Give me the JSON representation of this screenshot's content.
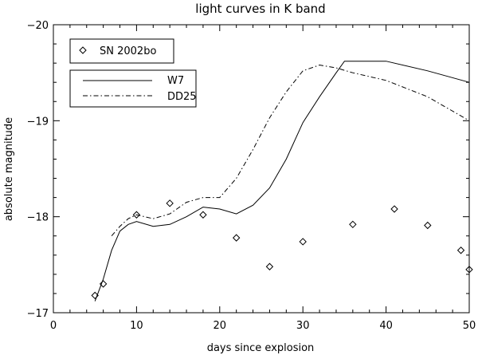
{
  "chart_data": {
    "type": "line",
    "title": "light curves in K band",
    "xlabel": "days since explosion",
    "ylabel": "absolute magnitude",
    "xlim": [
      0,
      50
    ],
    "ylim": [
      -17,
      -20
    ],
    "y_inverted": true,
    "grid": false,
    "legend_placement": "top-left",
    "x_ticks": [
      0,
      10,
      20,
      30,
      40,
      50
    ],
    "y_ticks": [
      -17,
      -18,
      -19,
      -20
    ],
    "x_tick_labels": [
      "0",
      "10",
      "20",
      "30",
      "40",
      "50"
    ],
    "y_tick_labels": [
      "−17",
      "−18",
      "−19",
      "−20"
    ],
    "observations": {
      "name": "SN 2002bo",
      "marker": "diamond",
      "x": [
        5,
        6,
        10,
        14,
        18,
        22,
        26,
        30,
        36,
        41,
        45,
        49,
        50
      ],
      "y": [
        -17.18,
        -17.3,
        -18.02,
        -18.14,
        -18.02,
        -17.78,
        -17.48,
        -17.74,
        -17.92,
        -18.08,
        -17.91,
        -17.65,
        -17.45
      ]
    },
    "series": [
      {
        "name": "W7",
        "style": "solid",
        "x": [
          5,
          6,
          7,
          8,
          9,
          10,
          12,
          14,
          16,
          18,
          20,
          22,
          24,
          26,
          28,
          30,
          32,
          34,
          35,
          36,
          40,
          45,
          50
        ],
        "y": [
          -17.12,
          -17.35,
          -17.65,
          -17.85,
          -17.92,
          -17.95,
          -17.9,
          -17.92,
          -18.0,
          -18.1,
          -18.08,
          -18.03,
          -18.12,
          -18.3,
          -18.6,
          -18.98,
          -19.25,
          -19.5,
          -19.62,
          -19.62,
          -19.62,
          -19.52,
          -19.4
        ]
      },
      {
        "name": "DD25",
        "style": "dashdot",
        "x": [
          7,
          8,
          9,
          10,
          12,
          14,
          16,
          18,
          20,
          22,
          24,
          26,
          28,
          30,
          32,
          34,
          36,
          40,
          45,
          50
        ],
        "y": [
          -17.8,
          -17.9,
          -17.98,
          -18.02,
          -17.98,
          -18.03,
          -18.15,
          -18.2,
          -18.2,
          -18.4,
          -18.7,
          -19.03,
          -19.3,
          -19.52,
          -19.58,
          -19.55,
          -19.5,
          -19.42,
          -19.25,
          -19.0
        ]
      }
    ]
  }
}
